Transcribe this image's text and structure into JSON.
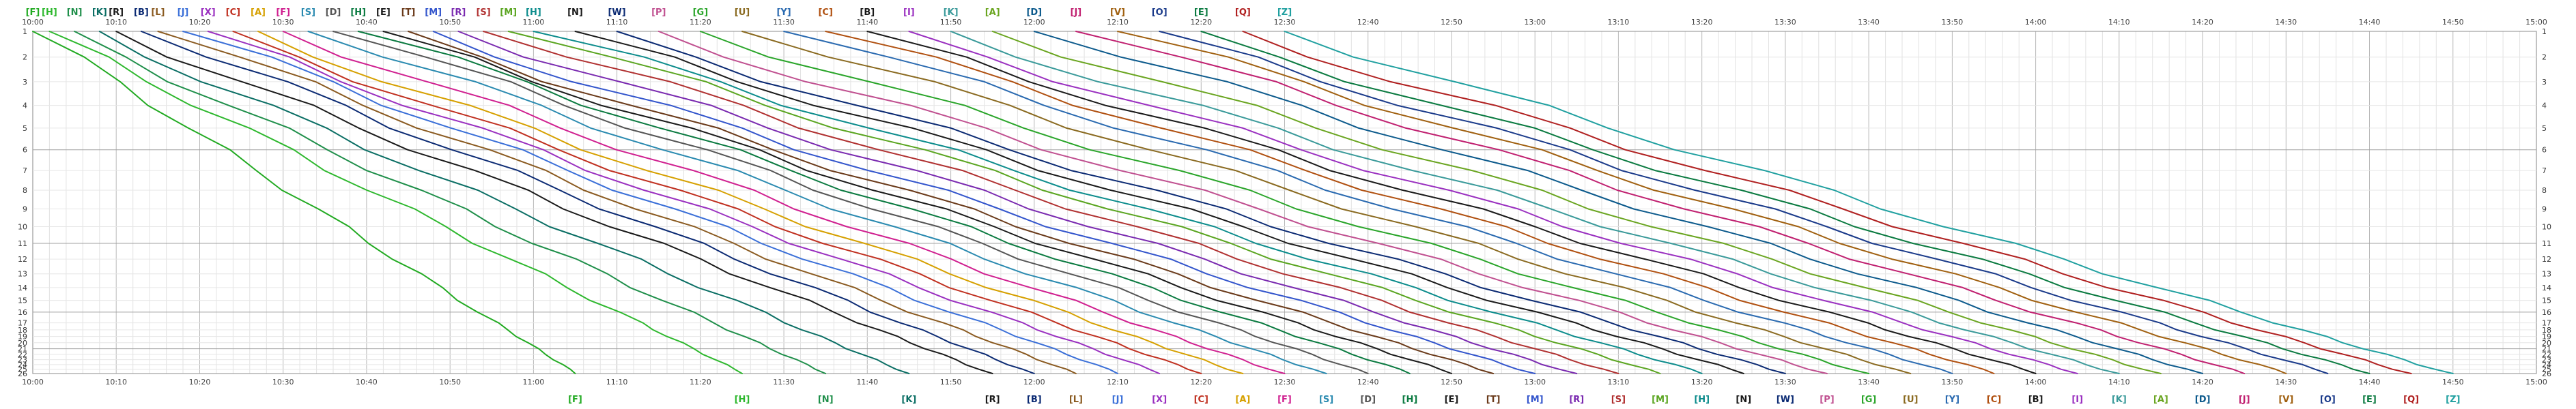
{
  "diagram": {
    "time_axis": {
      "start": "10:00",
      "end": "15:00",
      "major_ticks": [
        "10:00",
        "10:10",
        "10:20",
        "10:30",
        "10:40",
        "10:50",
        "11:00",
        "11:10",
        "11:20",
        "11:30",
        "11:40",
        "11:50",
        "12:00",
        "12:10",
        "12:20",
        "12:30",
        "12:40",
        "12:50",
        "13:00",
        "13:10",
        "13:20",
        "13:30",
        "13:40",
        "13:50",
        "14:00",
        "14:10",
        "14:20",
        "14:30",
        "14:40",
        "14:50",
        "15:00"
      ]
    },
    "stations": [
      "1",
      "2",
      "3",
      "4",
      "5",
      "6",
      "7",
      "8",
      "9",
      "10",
      "11",
      "12",
      "13",
      "14",
      "15",
      "16",
      "17",
      "18",
      "19",
      "20",
      "21",
      "22",
      "23",
      "24",
      "25",
      "26"
    ],
    "trains": [
      {
        "label": "[F]",
        "color": "#22aa22",
        "start": "10:00",
        "end": "11:05"
      },
      {
        "label": "[H]",
        "color": "#2eb82e",
        "start": "10:02",
        "end": "11:25"
      },
      {
        "label": "[N]",
        "color": "#1f8f4a",
        "start": "10:05",
        "end": "11:35"
      },
      {
        "label": "[K]",
        "color": "#0a6e64",
        "start": "10:08",
        "end": "11:45"
      },
      {
        "label": "[R]",
        "color": "#1a1a1a",
        "start": "10:10",
        "end": "11:55"
      },
      {
        "label": "[B]",
        "color": "#0b2a73",
        "start": "10:13",
        "end": "12:00"
      },
      {
        "label": "[L]",
        "color": "#8a5a20",
        "start": "10:15",
        "end": "12:05"
      },
      {
        "label": "[J]",
        "color": "#3a6fd8",
        "start": "10:18",
        "end": "12:10"
      },
      {
        "label": "[X]",
        "color": "#9a30c0",
        "start": "10:21",
        "end": "12:15"
      },
      {
        "label": "[C]",
        "color": "#c03020",
        "start": "10:24",
        "end": "12:20"
      },
      {
        "label": "[A]",
        "color": "#d6a000",
        "start": "10:27",
        "end": "12:25"
      },
      {
        "label": "[F]",
        "color": "#d02090",
        "start": "10:30",
        "end": "12:30"
      },
      {
        "label": "[S]",
        "color": "#2a8ab0",
        "start": "10:33",
        "end": "12:35"
      },
      {
        "label": "[D]",
        "color": "#555555",
        "start": "10:36",
        "end": "12:40"
      },
      {
        "label": "[H]",
        "color": "#0a7a40",
        "start": "10:39",
        "end": "12:45"
      },
      {
        "label": "[E]",
        "color": "#1a1a1a",
        "start": "10:42",
        "end": "12:50"
      },
      {
        "label": "[T]",
        "color": "#6a3a1a",
        "start": "10:45",
        "end": "12:55"
      },
      {
        "label": "[M]",
        "color": "#3355cc",
        "start": "10:48",
        "end": "13:00"
      },
      {
        "label": "[R]",
        "color": "#7a2ab0",
        "start": "10:51",
        "end": "13:05"
      },
      {
        "label": "[S]",
        "color": "#b03030",
        "start": "10:54",
        "end": "13:10"
      },
      {
        "label": "[M]",
        "color": "#5aa520",
        "start": "10:57",
        "end": "13:15"
      },
      {
        "label": "[H]",
        "color": "#0c8c8c",
        "start": "11:00",
        "end": "13:20"
      },
      {
        "label": "[N]",
        "color": "#1a1a1a",
        "start": "11:05",
        "end": "13:25"
      },
      {
        "label": "[W]",
        "color": "#0b2a73",
        "start": "11:10",
        "end": "13:30"
      },
      {
        "label": "[P]",
        "color": "#c05090",
        "start": "11:15",
        "end": "13:35"
      },
      {
        "label": "[G]",
        "color": "#2aa52a",
        "start": "11:20",
        "end": "13:40"
      },
      {
        "label": "[U]",
        "color": "#8a6a20",
        "start": "11:25",
        "end": "13:45"
      },
      {
        "label": "[Y]",
        "color": "#2a6ab0",
        "start": "11:30",
        "end": "13:50"
      },
      {
        "label": "[C]",
        "color": "#b05010",
        "start": "11:35",
        "end": "13:55"
      },
      {
        "label": "[B]",
        "color": "#1a1a1a",
        "start": "11:40",
        "end": "14:00"
      },
      {
        "label": "[I]",
        "color": "#9a30c0",
        "start": "11:45",
        "end": "14:05"
      },
      {
        "label": "[K]",
        "color": "#3a9a9a",
        "start": "11:50",
        "end": "14:10"
      },
      {
        "label": "[A]",
        "color": "#6aa520",
        "start": "11:55",
        "end": "14:15"
      },
      {
        "label": "[D]",
        "color": "#0c5a8c",
        "start": "12:00",
        "end": "14:20"
      },
      {
        "label": "[J]",
        "color": "#c02070",
        "start": "12:05",
        "end": "14:25"
      },
      {
        "label": "[V]",
        "color": "#a06010",
        "start": "12:10",
        "end": "14:30"
      },
      {
        "label": "[O]",
        "color": "#1a3a8a",
        "start": "12:15",
        "end": "14:35"
      },
      {
        "label": "[E]",
        "color": "#0a7a40",
        "start": "12:20",
        "end": "14:40"
      },
      {
        "label": "[Q]",
        "color": "#b02020",
        "start": "12:25",
        "end": "14:45"
      },
      {
        "label": "[Z]",
        "color": "#20a0a0",
        "start": "12:30",
        "end": "14:50"
      }
    ]
  }
}
